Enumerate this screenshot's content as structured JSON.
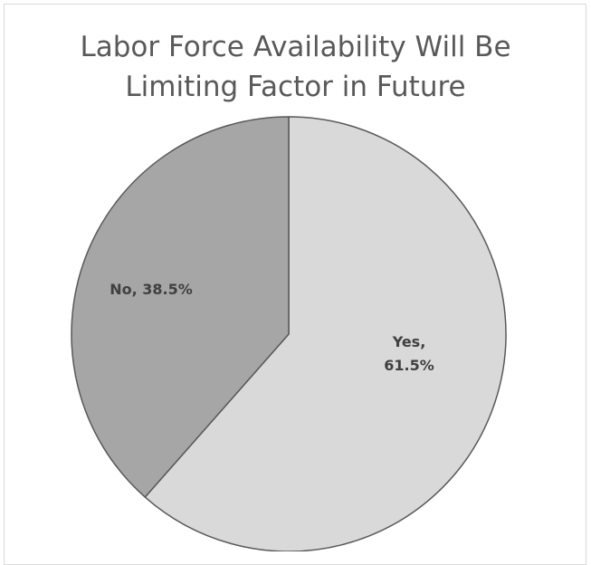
{
  "chart_data": {
    "type": "pie",
    "title_lines": [
      "Labor Force Availability Will Be",
      "Limiting Factor in Future"
    ],
    "slices": [
      {
        "name": "Yes",
        "value": 61.5,
        "label_lines": [
          "Yes,",
          "61.5%"
        ],
        "color": "#d9d9d9"
      },
      {
        "name": "No",
        "value": 38.5,
        "label_lines": [
          "No, 38.5%"
        ],
        "color": "#a6a6a6"
      }
    ],
    "start_angle_deg": 0,
    "direction": "clockwise",
    "legend": "none"
  }
}
